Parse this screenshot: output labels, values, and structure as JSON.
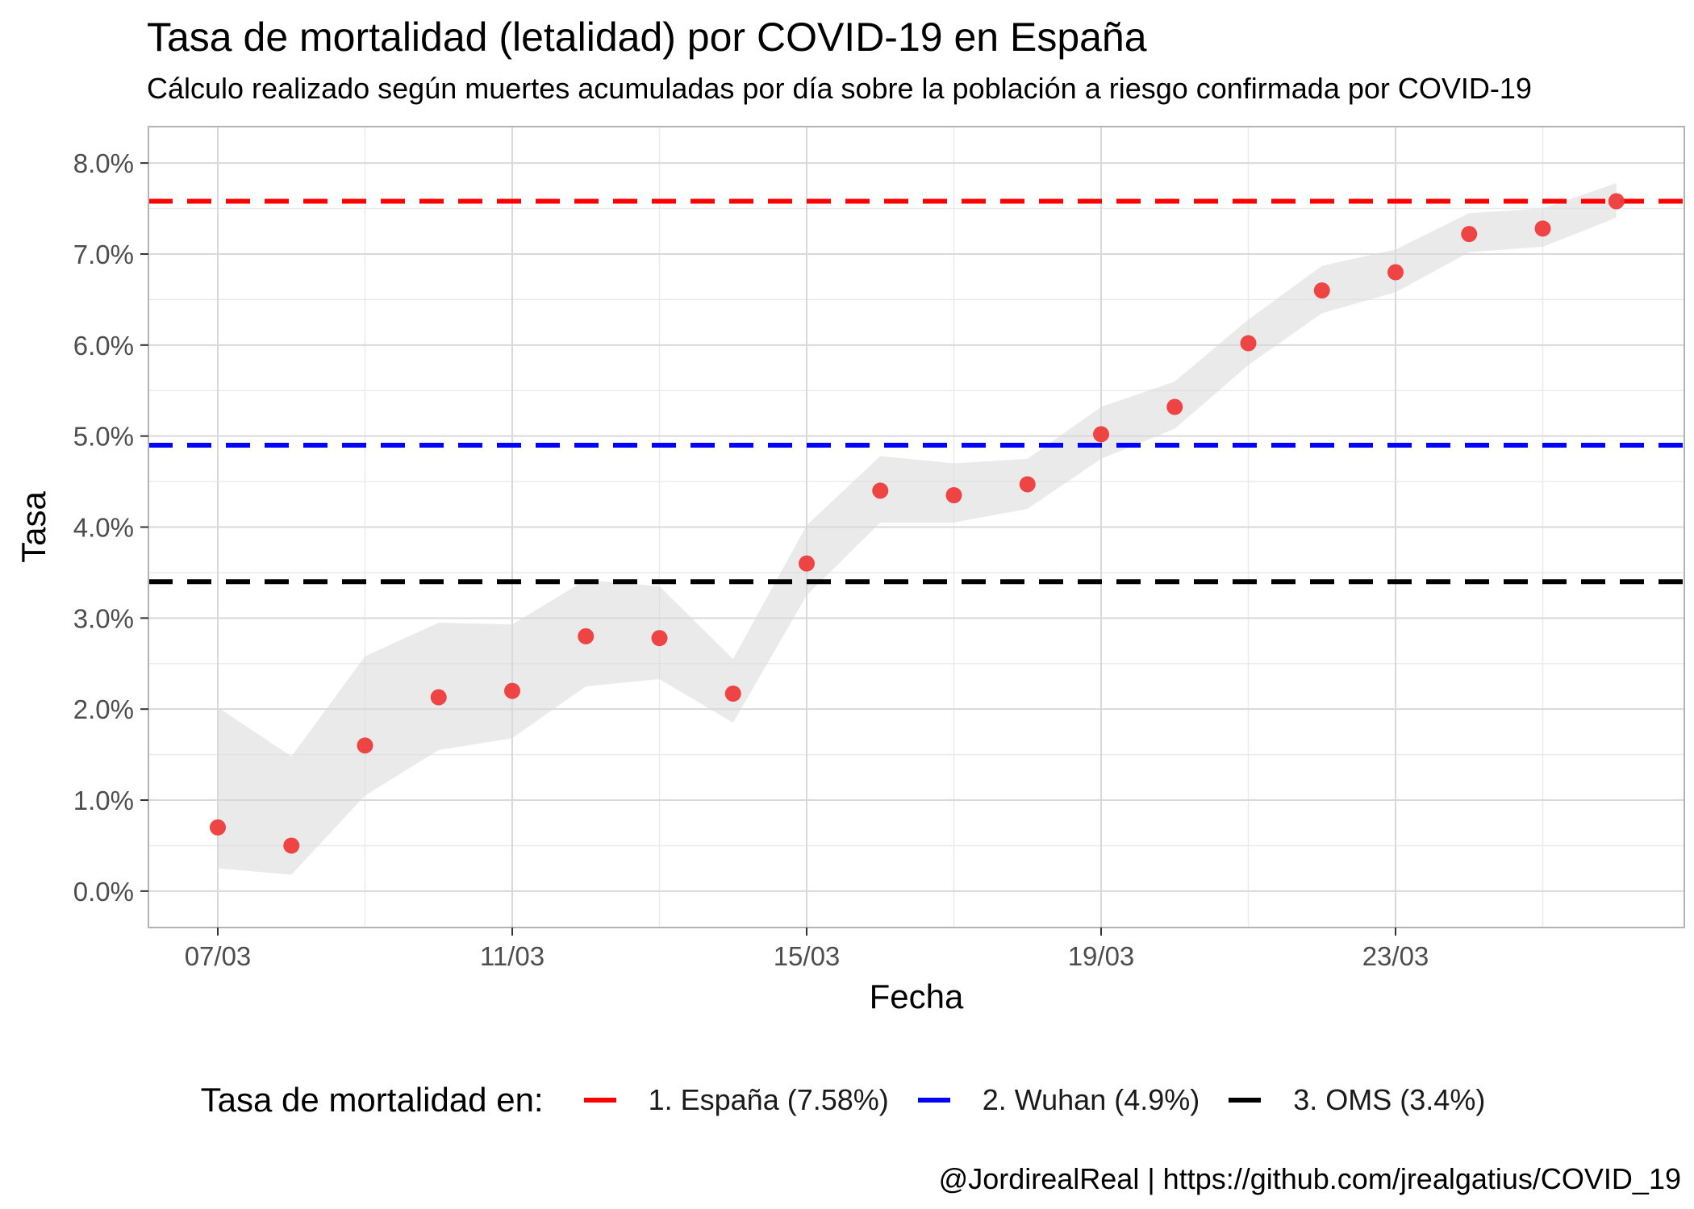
{
  "chart_data": {
    "type": "scatter",
    "title": "Tasa de mortalidad (letalidad) por COVID-19 en España",
    "subtitle": "Cálculo realizado según muertes acumuladas por día sobre la población a riesgo confirmada por COVID-19",
    "xlabel": "Fecha",
    "ylabel": "Tasa",
    "caption": "@JordirealReal | https://github.com/jrealgatius/COVID_19",
    "x": [
      "07/03",
      "08/03",
      "09/03",
      "10/03",
      "11/03",
      "12/03",
      "13/03",
      "14/03",
      "15/03",
      "16/03",
      "17/03",
      "18/03",
      "19/03",
      "20/03",
      "21/03",
      "22/03",
      "23/03",
      "24/03",
      "25/03",
      "26/03"
    ],
    "x_ticks": [
      "07/03",
      "11/03",
      "15/03",
      "19/03",
      "23/03"
    ],
    "series": [
      {
        "values": [
          0.7,
          0.5,
          1.6,
          2.13,
          2.2,
          2.8,
          2.78,
          2.17,
          3.6,
          4.4,
          4.35,
          4.47,
          5.02,
          5.32,
          6.02,
          6.6,
          6.8,
          7.22,
          7.28,
          7.58
        ],
        "lower": [
          0.25,
          0.18,
          1.05,
          1.55,
          1.68,
          2.25,
          2.33,
          1.85,
          3.25,
          4.05,
          4.05,
          4.2,
          4.75,
          5.08,
          5.78,
          6.35,
          6.58,
          7.02,
          7.08,
          7.4
        ],
        "upper": [
          2.02,
          1.48,
          2.58,
          2.95,
          2.93,
          3.42,
          3.35,
          2.55,
          4.02,
          4.78,
          4.7,
          4.75,
          5.32,
          5.6,
          6.28,
          6.87,
          7.05,
          7.45,
          7.5,
          7.78
        ],
        "color": "#EE3B3B"
      }
    ],
    "reference_lines": [
      {
        "value": 7.58,
        "color": "#FF0000",
        "label": "1. España (7.58%)"
      },
      {
        "value": 4.9,
        "color": "#0000FF",
        "label": "2. Wuhan (4.9%)"
      },
      {
        "value": 3.4,
        "color": "#000000",
        "label": "3. OMS (3.4%)"
      }
    ],
    "y_ticks": [
      "0.0%",
      "1.0%",
      "2.0%",
      "3.0%",
      "4.0%",
      "5.0%",
      "6.0%",
      "7.0%",
      "8.0%"
    ],
    "ylim": [
      -0.4,
      8.4
    ],
    "grid": true,
    "legend": {
      "title": "Tasa de mortalidad en:",
      "position": "bottom"
    }
  }
}
